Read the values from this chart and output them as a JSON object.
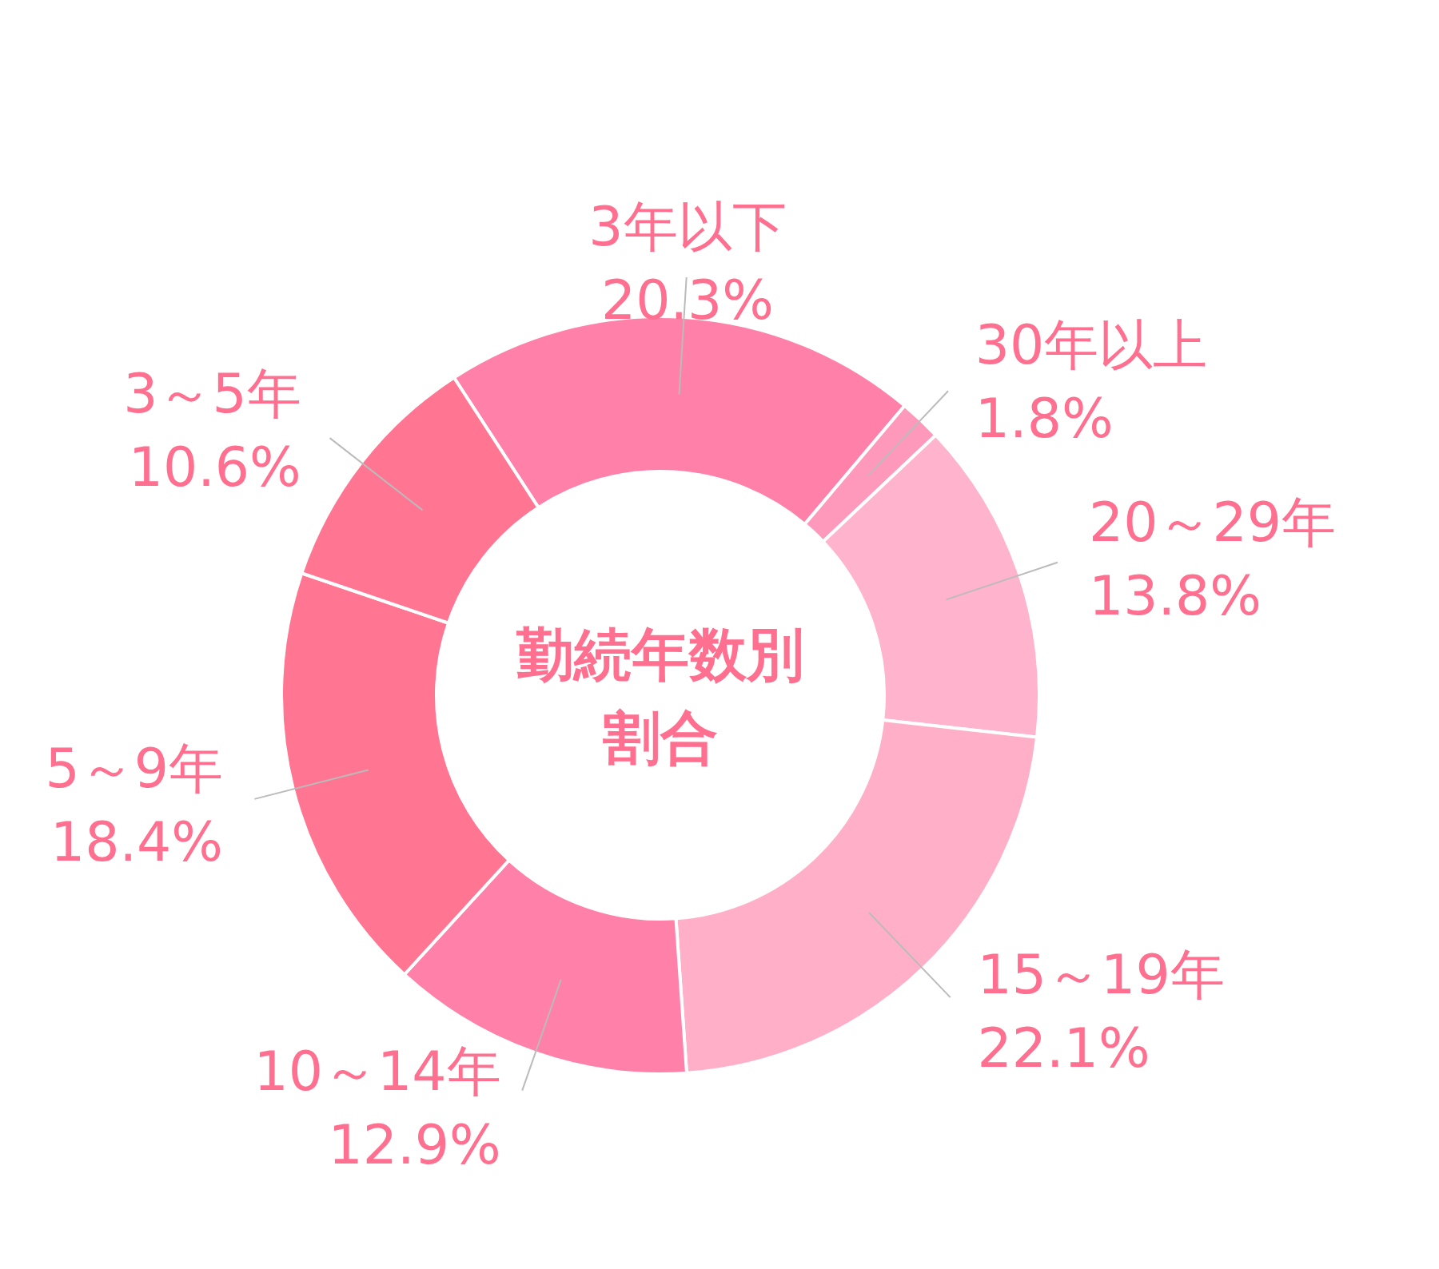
{
  "chart_data": {
    "type": "donut",
    "title": "勤続年数別割合",
    "categories": [
      "3年以下",
      "30年以上",
      "20～29年",
      "15～19年",
      "10～14年",
      "5～9年",
      "3～5年"
    ],
    "values": [
      20.3,
      1.8,
      13.8,
      22.1,
      12.9,
      18.4,
      10.6
    ],
    "colors": [
      "#ff80a8",
      "#ff99bb",
      "#ffb3cc",
      "#ffb0c8",
      "#ff80a8",
      "#ff7592",
      "#ff7592"
    ],
    "value_labels": [
      "20.3%",
      "1.8%",
      "13.8%",
      "22.1%",
      "12.9%",
      "18.4%",
      "10.6%"
    ]
  }
}
